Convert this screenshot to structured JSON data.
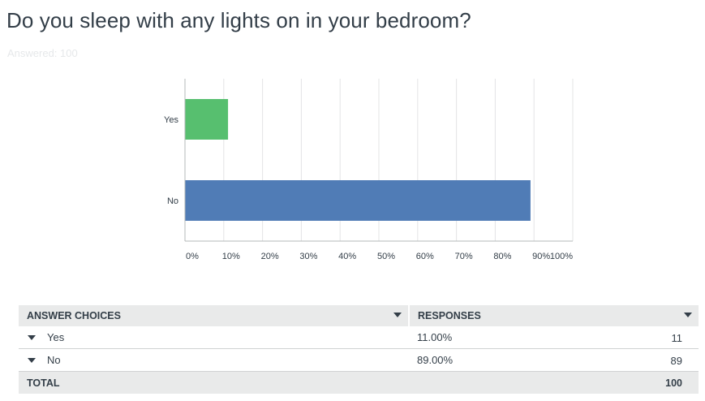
{
  "question": {
    "title": "Do you sleep with any lights on in your bedroom?",
    "answered": "Answered: 100"
  },
  "chart_data": {
    "type": "bar",
    "orientation": "horizontal",
    "categories": [
      "Yes",
      "No"
    ],
    "values": [
      11,
      89
    ],
    "colors": [
      "#57bf6f",
      "#507cb6"
    ],
    "xlim": [
      0,
      100
    ],
    "ticks": [
      "0%",
      "10%",
      "20%",
      "30%",
      "40%",
      "50%",
      "60%",
      "70%",
      "80%",
      "90%",
      "100%"
    ],
    "grid": true,
    "title": "",
    "xlabel": "",
    "ylabel": ""
  },
  "table": {
    "headers": [
      "ANSWER CHOICES",
      "RESPONSES"
    ],
    "rows": [
      {
        "choice": "Yes",
        "percent": "11.00%",
        "count": "11"
      },
      {
        "choice": "No",
        "percent": "89.00%",
        "count": "89"
      }
    ],
    "total_label": "TOTAL",
    "total_count": "100"
  }
}
